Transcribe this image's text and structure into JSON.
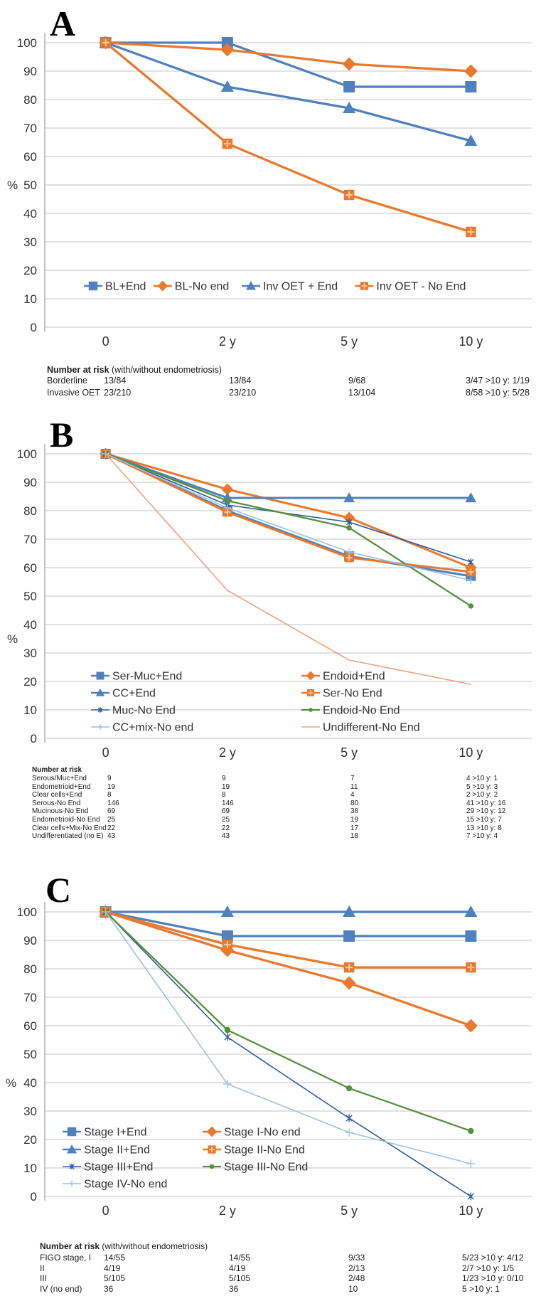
{
  "figure_type": "kaplan-meier-style line charts, 3 panels",
  "x_categories": [
    "0",
    "2 y",
    "5 y",
    "10 y"
  ],
  "y_axis_label": "%",
  "y_ticks": [
    100,
    90,
    80,
    70,
    60,
    50,
    40,
    30,
    20,
    10,
    0
  ],
  "colors": {
    "blue": "#4E81BD",
    "orange": "#E8792E",
    "navy": "#2F5B9D",
    "green": "#55913C",
    "lightblue": "#9CC2E5",
    "salmon": "#F2A17C"
  },
  "chart_data": [
    {
      "type": "line",
      "panel": "A",
      "ylabel": "%",
      "xlabel": "",
      "ylim": [
        0,
        100
      ],
      "grid": true,
      "legend_position": "inside-bottom-row",
      "categories": [
        "0",
        "2 y",
        "5 y",
        "10 y"
      ],
      "series": [
        {
          "name": "BL+End",
          "color": "#4E81BD",
          "marker": "square",
          "weight": "thick",
          "values": [
            100,
            100,
            84.5,
            84.5
          ]
        },
        {
          "name": "BL-No end",
          "color": "#E8792E",
          "marker": "diamond",
          "weight": "thick",
          "values": [
            100,
            97.5,
            92.5,
            90
          ]
        },
        {
          "name": "Inv OET + End",
          "color": "#4E81BD",
          "marker": "triangle",
          "weight": "thick",
          "values": [
            100,
            84.5,
            77,
            65.5
          ]
        },
        {
          "name": "Inv OET - No End",
          "color": "#E8792E",
          "marker": "square-cross",
          "weight": "thick",
          "values": [
            100,
            64.5,
            46.5,
            33.5
          ]
        }
      ],
      "risk_table": {
        "heading": "Number at risk",
        "heading_note": "(with/without endometriosis)",
        "rows": [
          {
            "label": "Borderline",
            "values": [
              "13/84",
              "13/84",
              "9/68",
              "3/47 >10 y: 1/19"
            ]
          },
          {
            "label": "Invasive OET",
            "values": [
              "23/210",
              "23/210",
              "13/104",
              "8/58 >10 y: 5/28"
            ]
          }
        ]
      }
    },
    {
      "type": "line",
      "panel": "B",
      "ylabel": "%",
      "xlabel": "",
      "ylim": [
        0,
        100
      ],
      "grid": true,
      "legend_position": "inside-bottom-two-columns",
      "categories": [
        "0",
        "2 y",
        "5 y",
        "10 y"
      ],
      "series": [
        {
          "name": "Ser-Muc+End",
          "color": "#4E81BD",
          "marker": "square",
          "weight": "thick",
          "values": [
            100,
            80,
            64,
            57
          ]
        },
        {
          "name": "Endoid+End",
          "color": "#E8792E",
          "marker": "diamond",
          "weight": "thick",
          "values": [
            100,
            87.5,
            77.5,
            60
          ]
        },
        {
          "name": "CC+End",
          "color": "#4E81BD",
          "marker": "triangle",
          "weight": "thick",
          "values": [
            100,
            84.5,
            84.5,
            84.5
          ]
        },
        {
          "name": "Ser-No End",
          "color": "#E8792E",
          "marker": "square-cross",
          "weight": "thick",
          "values": [
            100,
            79.5,
            63.5,
            58.5
          ]
        },
        {
          "name": "Muc-No End",
          "color": "#2F5B9D",
          "marker": "asterisk",
          "weight": "thin",
          "values": [
            100,
            82,
            76,
            62
          ]
        },
        {
          "name": "Endoid-No End",
          "color": "#55913C",
          "marker": "dot",
          "weight": "medium",
          "values": [
            100,
            83.5,
            74,
            46.5
          ]
        },
        {
          "name": "CC+mix-No end",
          "color": "#9CC2E5",
          "marker": "plus",
          "weight": "thin",
          "values": [
            100,
            81,
            65.5,
            55.5
          ]
        },
        {
          "name": "Undifferent-No End",
          "color": "#F2A17C",
          "marker": "none",
          "weight": "thin",
          "values": [
            100,
            52,
            27.5,
            19
          ]
        }
      ],
      "risk_table": {
        "heading": "Number at risk",
        "heading_note": "",
        "rows": [
          {
            "label": "Serous/Muc+End",
            "values": [
              "9",
              "9",
              "7",
              "4  >10 y: 1"
            ]
          },
          {
            "label": "Endometrioid+End",
            "values": [
              "19",
              "19",
              "11",
              "5  >10 y: 3"
            ]
          },
          {
            "label": "Clear cells+End",
            "values": [
              "8",
              "8",
              "4",
              "2  >10 y: 2"
            ]
          },
          {
            "label": "Serous-No End",
            "values": [
              "146",
              "146",
              "80",
              "41  >10 y: 16"
            ]
          },
          {
            "label": "Mucinous-No End",
            "values": [
              "69",
              "69",
              "38",
              "29  >10 y: 12"
            ]
          },
          {
            "label": "Endometrioid-No End",
            "values": [
              "25",
              "25",
              "19",
              "15  >10 y: 7"
            ]
          },
          {
            "label": "Clear cells+Mix-No End",
            "values": [
              "22",
              "22",
              "17",
              "13  >10 y: 8"
            ]
          },
          {
            "label": "Undifferentiated (no E)",
            "values": [
              "43",
              "43",
              "18",
              "7  >10 y: 4"
            ]
          }
        ]
      }
    },
    {
      "type": "line",
      "panel": "C",
      "ylabel": "%",
      "xlabel": "",
      "ylim": [
        0,
        100
      ],
      "grid": true,
      "legend_position": "inside-bottom-two-columns",
      "categories": [
        "0",
        "2 y",
        "5 y",
        "10 y"
      ],
      "series": [
        {
          "name": "Stage I+End",
          "color": "#4E81BD",
          "marker": "square",
          "weight": "thick",
          "values": [
            100,
            91.5,
            91.5,
            91.5
          ]
        },
        {
          "name": "Stage I-No end",
          "color": "#E8792E",
          "marker": "diamond",
          "weight": "thick",
          "values": [
            100,
            86.5,
            75,
            60
          ]
        },
        {
          "name": "Stage II+End",
          "color": "#4E81BD",
          "marker": "triangle",
          "weight": "thick",
          "values": [
            100,
            100,
            100,
            100
          ]
        },
        {
          "name": "Stage II-No End",
          "color": "#E8792E",
          "marker": "square-cross",
          "weight": "thick",
          "values": [
            100,
            88.5,
            80.5,
            80.5
          ]
        },
        {
          "name": "Stage III+End",
          "color": "#2F5B9D",
          "marker": "asterisk",
          "weight": "thin",
          "values": [
            100,
            56,
            27.5,
            0
          ]
        },
        {
          "name": "Stage III-No End",
          "color": "#55913C",
          "marker": "dot",
          "weight": "medium",
          "values": [
            100,
            58.5,
            38,
            23
          ]
        },
        {
          "name": "Stage IV-No end",
          "color": "#9CC2E5",
          "marker": "plus",
          "weight": "thin",
          "values": [
            100,
            39.5,
            22.5,
            11.5
          ]
        }
      ],
      "risk_table": {
        "heading": "Number at risk",
        "heading_note": "(with/without endometriosis)",
        "rows": [
          {
            "label": "FIGO stage, I",
            "values": [
              "14/55",
              "14/55",
              "9/33",
              "5/23  >10 y: 4/12"
            ]
          },
          {
            "label": "II",
            "values": [
              "4/19",
              "4/19",
              "2/13",
              "2/7  >10 y: 1/5"
            ]
          },
          {
            "label": "III",
            "values": [
              "5/105",
              "5/105",
              "2/48",
              "1/23 >10 y: 0/10"
            ]
          },
          {
            "label": "IV (no end)",
            "values": [
              "36",
              "36",
              "10",
              "5  >10 y: 1"
            ]
          }
        ]
      }
    }
  ]
}
